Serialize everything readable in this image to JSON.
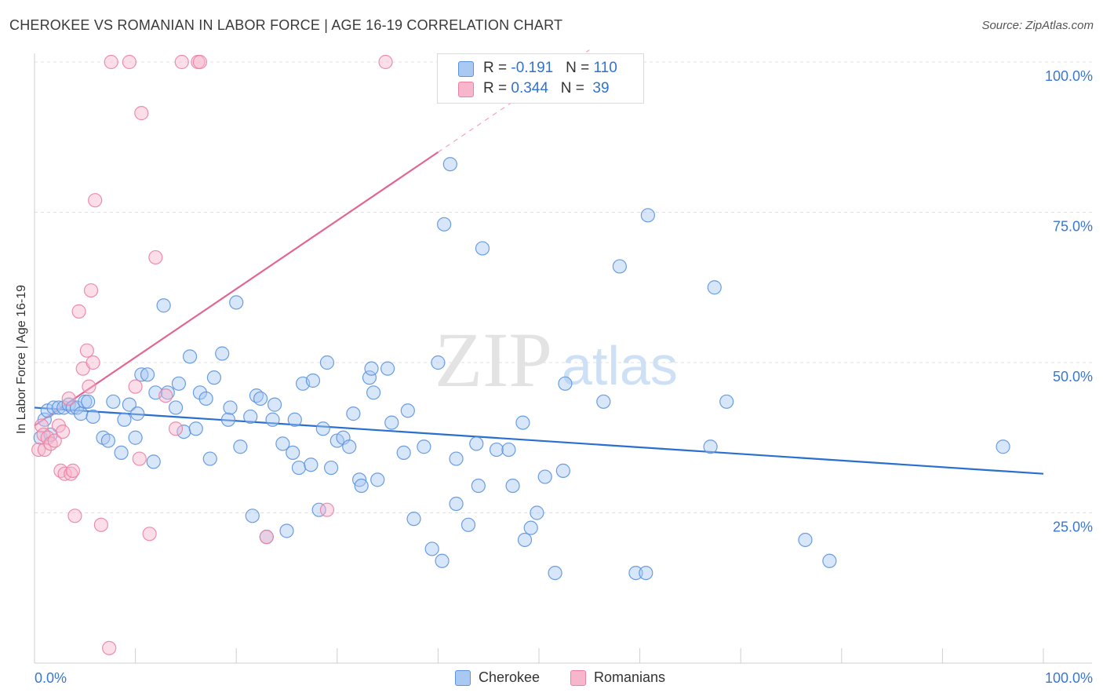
{
  "header": {
    "title": "CHEROKEE VS ROMANIAN IN LABOR FORCE | AGE 16-19 CORRELATION CHART",
    "source": "Source: ZipAtlas.com"
  },
  "watermark": {
    "zip": "ZIP",
    "atlas": "atlas"
  },
  "legend_top": {
    "rows": [
      {
        "r_label": "R = ",
        "r_value": "-0.191",
        "n_label": "N = ",
        "n_value": "110",
        "color": "#a9c8f2"
      },
      {
        "r_label": "R = ",
        "r_value": "0.344",
        "n_label": "N = ",
        "n_value": " 39",
        "color": "#f7b6cb"
      }
    ]
  },
  "legend_bottom": [
    {
      "label": "Cherokee",
      "color": "#a9c8f2"
    },
    {
      "label": "Romanians",
      "color": "#f7b6cb"
    }
  ],
  "chart_data": {
    "type": "scatter",
    "title": "CHEROKEE VS ROMANIAN IN LABOR FORCE | AGE 16-19 CORRELATION CHART",
    "xlabel": "",
    "ylabel": "In Labor Force | Age 16-19",
    "xlim": [
      0,
      100
    ],
    "ylim": [
      0,
      105
    ],
    "x_tick_labels": [
      "0.0%",
      "100.0%"
    ],
    "y_ticks": [
      25,
      50,
      75,
      100
    ],
    "y_tick_labels": [
      "25.0%",
      "50.0%",
      "75.0%",
      "100.0%"
    ],
    "grid": true,
    "series": [
      {
        "name": "Cherokee",
        "color": "#5b93e0",
        "fill": "#a9c8f2",
        "trend_line_color": "#2a6fd0",
        "trend": {
          "x0": 0,
          "y0": 42.5,
          "x1": 100,
          "y1": 31.5
        },
        "points": [
          [
            0.6,
            37.5
          ],
          [
            1.0,
            40.5
          ],
          [
            1.3,
            42
          ],
          [
            1.6,
            38
          ],
          [
            1.9,
            42.5
          ],
          [
            2.4,
            42.5
          ],
          [
            2.9,
            42.5
          ],
          [
            3.4,
            43
          ],
          [
            3.8,
            42.5
          ],
          [
            4.2,
            42.5
          ],
          [
            4.6,
            41.5
          ],
          [
            5.0,
            43.5
          ],
          [
            5.3,
            43.5
          ],
          [
            5.8,
            41
          ],
          [
            6.8,
            37.5
          ],
          [
            7.3,
            37
          ],
          [
            7.8,
            43.5
          ],
          [
            8.6,
            35
          ],
          [
            8.9,
            40.5
          ],
          [
            9.4,
            43
          ],
          [
            10.0,
            37.5
          ],
          [
            10.2,
            41.5
          ],
          [
            10.6,
            48
          ],
          [
            11.2,
            48
          ],
          [
            11.8,
            33.5
          ],
          [
            12.0,
            45
          ],
          [
            12.8,
            59.5
          ],
          [
            13.2,
            45
          ],
          [
            14.0,
            42.5
          ],
          [
            14.3,
            46.5
          ],
          [
            14.8,
            38.5
          ],
          [
            15.4,
            51
          ],
          [
            16.0,
            39
          ],
          [
            16.4,
            45
          ],
          [
            17.0,
            44
          ],
          [
            17.4,
            34
          ],
          [
            17.8,
            47.5
          ],
          [
            18.6,
            51.5
          ],
          [
            19.2,
            40.5
          ],
          [
            19.4,
            42.5
          ],
          [
            20.0,
            60
          ],
          [
            20.4,
            36
          ],
          [
            21.4,
            41
          ],
          [
            21.6,
            24.5
          ],
          [
            22.0,
            44.5
          ],
          [
            22.4,
            44
          ],
          [
            23.0,
            21
          ],
          [
            23.6,
            40.5
          ],
          [
            23.8,
            43
          ],
          [
            24.6,
            36.5
          ],
          [
            25.0,
            22
          ],
          [
            25.6,
            35
          ],
          [
            25.8,
            40.5
          ],
          [
            26.2,
            32.5
          ],
          [
            26.6,
            46.5
          ],
          [
            27.4,
            33
          ],
          [
            27.6,
            47
          ],
          [
            28.2,
            25.5
          ],
          [
            28.6,
            39
          ],
          [
            29.0,
            50
          ],
          [
            29.4,
            32.5
          ],
          [
            30.0,
            37
          ],
          [
            30.6,
            37.5
          ],
          [
            31.2,
            36
          ],
          [
            31.6,
            41.5
          ],
          [
            32.2,
            30.5
          ],
          [
            32.4,
            29.5
          ],
          [
            33.2,
            47.5
          ],
          [
            33.4,
            49
          ],
          [
            33.6,
            45
          ],
          [
            34.0,
            30.5
          ],
          [
            35.0,
            49
          ],
          [
            35.4,
            40
          ],
          [
            36.6,
            35
          ],
          [
            37.0,
            42
          ],
          [
            37.6,
            24
          ],
          [
            38.6,
            36
          ],
          [
            39.4,
            19
          ],
          [
            40.0,
            50
          ],
          [
            40.4,
            17
          ],
          [
            40.6,
            73
          ],
          [
            41.2,
            83
          ],
          [
            41.8,
            34
          ],
          [
            41.8,
            26.5
          ],
          [
            43.0,
            23
          ],
          [
            43.8,
            36.5
          ],
          [
            44.0,
            29.5
          ],
          [
            44.4,
            69
          ],
          [
            45.8,
            35.5
          ],
          [
            47.0,
            35.5
          ],
          [
            47.4,
            29.5
          ],
          [
            48.4,
            40
          ],
          [
            48.6,
            20.5
          ],
          [
            49.2,
            22.5
          ],
          [
            49.8,
            25
          ],
          [
            50.6,
            31
          ],
          [
            51.6,
            15
          ],
          [
            52.4,
            32
          ],
          [
            52.6,
            46.5
          ],
          [
            56.4,
            43.5
          ],
          [
            58.0,
            66
          ],
          [
            59.6,
            15
          ],
          [
            60.6,
            15
          ],
          [
            60.8,
            74.5
          ],
          [
            67.0,
            36
          ],
          [
            67.4,
            62.5
          ],
          [
            68.6,
            43.5
          ],
          [
            76.4,
            20.5
          ],
          [
            78.8,
            17
          ],
          [
            96.0,
            36
          ]
        ]
      },
      {
        "name": "Romanians",
        "color": "#ec82a3",
        "fill": "#f7b6cb",
        "trend_line_color": "#e26593",
        "trend": {
          "x0": 0,
          "y0": 39.5,
          "x1": 40,
          "y1": 85,
          "dash_to_x": 55,
          "dash_to_y": 102
        },
        "points": [
          [
            0.4,
            35.5
          ],
          [
            0.7,
            39.5
          ],
          [
            0.9,
            38
          ],
          [
            1.0,
            35.5
          ],
          [
            1.3,
            37.5
          ],
          [
            1.6,
            36.5
          ],
          [
            2.0,
            37
          ],
          [
            2.4,
            39.5
          ],
          [
            2.6,
            32
          ],
          [
            2.8,
            38.5
          ],
          [
            3.0,
            31.5
          ],
          [
            3.4,
            44
          ],
          [
            3.6,
            31.5
          ],
          [
            3.8,
            32
          ],
          [
            4.0,
            24.5
          ],
          [
            4.4,
            58.5
          ],
          [
            4.8,
            49
          ],
          [
            5.2,
            52
          ],
          [
            5.4,
            46
          ],
          [
            5.6,
            62
          ],
          [
            5.8,
            50
          ],
          [
            6.0,
            77
          ],
          [
            6.6,
            23
          ],
          [
            7.4,
            2.5
          ],
          [
            7.6,
            100
          ],
          [
            9.4,
            100
          ],
          [
            10.0,
            46
          ],
          [
            10.4,
            34
          ],
          [
            10.6,
            91.5
          ],
          [
            11.4,
            21.5
          ],
          [
            12.0,
            67.5
          ],
          [
            13.0,
            44.5
          ],
          [
            14.0,
            39
          ],
          [
            14.6,
            100
          ],
          [
            16.2,
            100
          ],
          [
            16.4,
            100
          ],
          [
            23.0,
            21
          ],
          [
            29.0,
            25.5
          ],
          [
            34.8,
            100
          ]
        ]
      }
    ]
  }
}
